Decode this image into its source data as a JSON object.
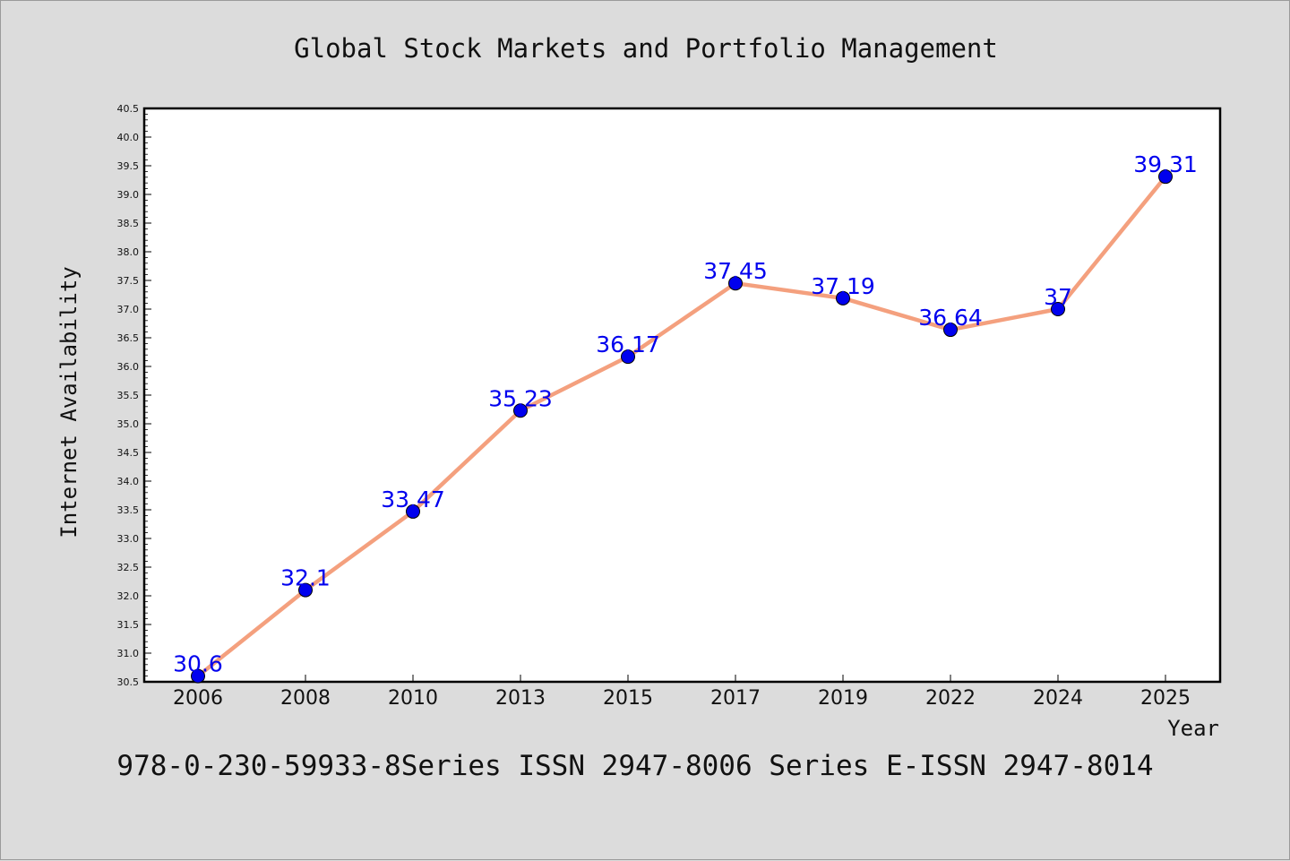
{
  "chart_data": {
    "type": "line",
    "title": "Global Stock Markets and Portfolio Management",
    "xlabel": "Year",
    "ylabel": "Internet Availability",
    "categories": [
      "2006",
      "2008",
      "2010",
      "2013",
      "2015",
      "2017",
      "2019",
      "2022",
      "2024",
      "2025"
    ],
    "series": [
      {
        "values": [
          30.6,
          32.1,
          33.47,
          35.23,
          36.17,
          37.45,
          37.19,
          36.64,
          37,
          39.31
        ],
        "labels": [
          "30.6",
          "32.1",
          "33.47",
          "35.23",
          "36.17",
          "37.45",
          "37.19",
          "36.64",
          "37",
          "39.31"
        ],
        "line_color": "#f4a07e",
        "marker_color": "#0000ee"
      }
    ],
    "ylim": [
      30.5,
      40.5
    ],
    "yticks": [
      "30.5",
      "31.0",
      "31.5",
      "32.0",
      "32.5",
      "33.0",
      "33.5",
      "34.0",
      "34.5",
      "35.0",
      "35.5",
      "36.0",
      "36.5",
      "37.0",
      "37.5",
      "38.0",
      "38.5",
      "39.0",
      "39.5",
      "40.0",
      "40.5"
    ],
    "grid": false,
    "legend": "none"
  },
  "caption": "978-0-230-59933-8Series ISSN 2947-8006 Series E-ISSN 2947-8014",
  "colors": {
    "background": "#dcdcdc",
    "plot_background": "#ffffff",
    "axis": "#000000",
    "label_text": "#0000ee"
  }
}
